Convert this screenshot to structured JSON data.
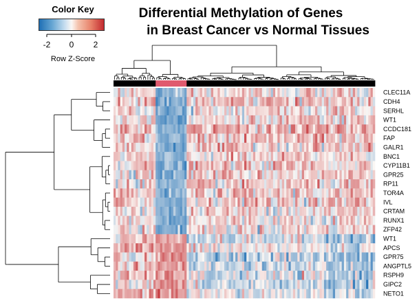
{
  "chart_data": {
    "type": "heatmap",
    "title_line1": "Differential Methylation of Genes",
    "title_line2": "in Breast Cancer vs Normal Tissues",
    "color_key": {
      "title": "Color Key",
      "label": "Row Z-Score",
      "ticks": [
        "-2",
        "0",
        "2"
      ],
      "range": [
        -3,
        3
      ]
    },
    "colors": {
      "low": "#1f6fb4",
      "mid": "#fbf7f4",
      "high": "#c22a2f",
      "group_tumor": "#000000",
      "group_normal": "#e05a6e"
    },
    "genes": [
      "CLEC11A",
      "CDH4",
      "SERHL",
      "WT1",
      "CCDC181",
      "FAP",
      "GALR1",
      "BNC1",
      "CYP11B1",
      "GPR25",
      "RP11",
      "TOR4A",
      "IVL",
      "CRTAM",
      "RUNX1",
      "ZFP42",
      "WT1",
      "APCS",
      "GPR75",
      "ANGPTL5",
      "RSPH9",
      "GIPC2",
      "NETO1"
    ],
    "sample_groups": [
      "tumor",
      "normal",
      "tumor"
    ],
    "legend": "none",
    "grid": false
  }
}
